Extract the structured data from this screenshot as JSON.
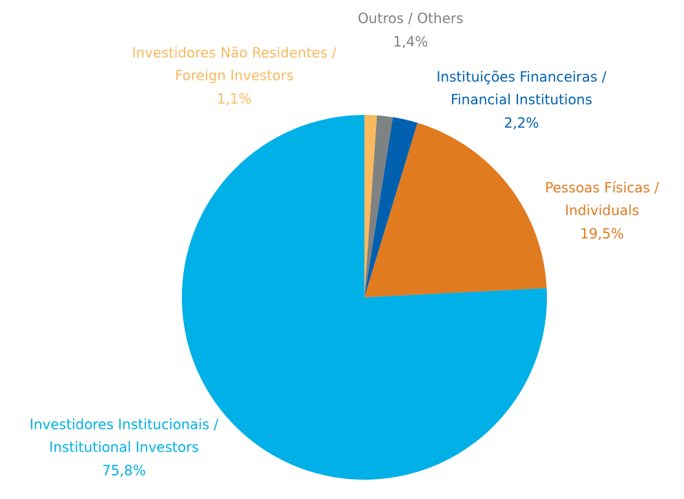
{
  "chart_data": {
    "type": "pie",
    "categories": [
      [
        "Investidores Não Residentes /",
        "Foreign Investors"
      ],
      [
        "Outros / Others"
      ],
      [
        "Instituições Financeiras /",
        "Financial Institutions"
      ],
      [
        "Pessoas Físicas /",
        "Individuals"
      ],
      [
        "Investidores Institucionais /",
        "Institutional Investors"
      ]
    ],
    "values": [
      1.1,
      1.4,
      2.2,
      19.5,
      75.8
    ],
    "value_labels": [
      "1,1%",
      "1,4%",
      "2,2%",
      "19,5%",
      "75,8%"
    ],
    "colors": [
      "#f9b95e",
      "#7f8282",
      "#0060b0",
      "#e07b1f",
      "#00b0e6"
    ]
  }
}
